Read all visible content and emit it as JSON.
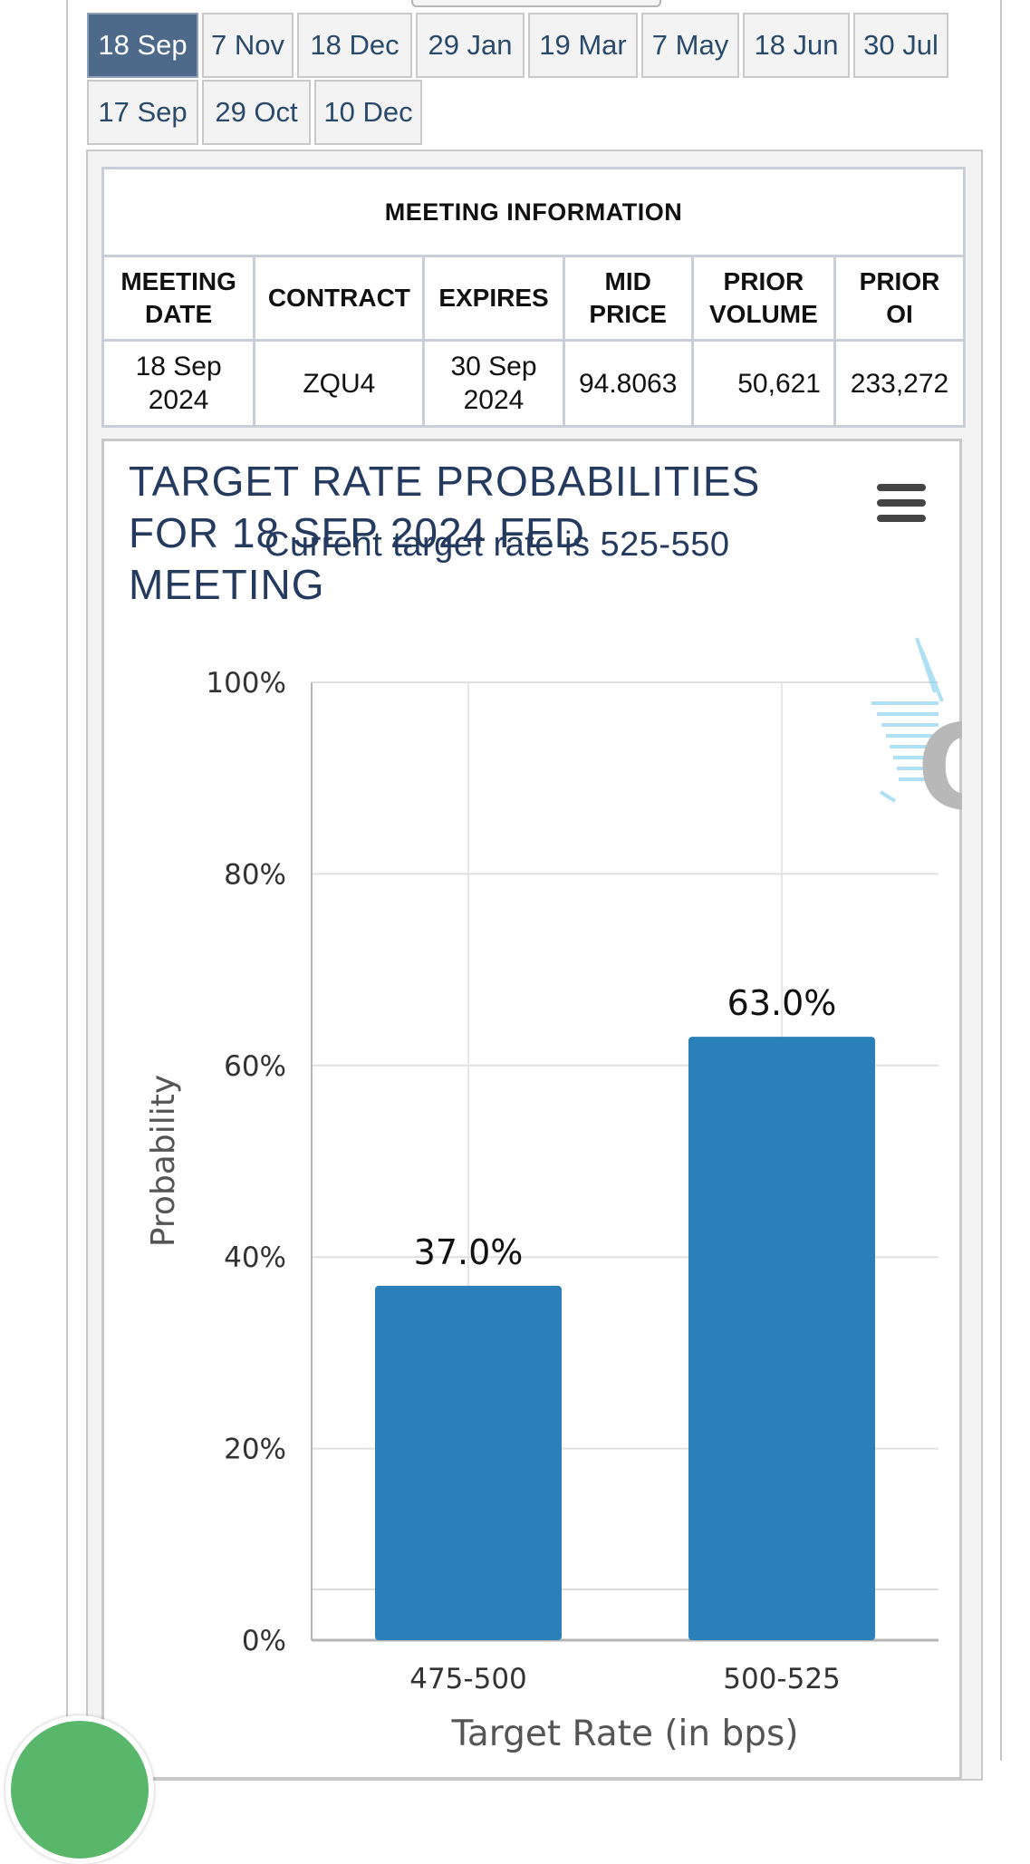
{
  "tabs": [
    {
      "label": "18 Sep",
      "active": true
    },
    {
      "label": "7 Nov",
      "active": false
    },
    {
      "label": "18 Dec",
      "active": false
    },
    {
      "label": "29 Jan",
      "active": false
    },
    {
      "label": "19 Mar",
      "active": false
    },
    {
      "label": "7 May",
      "active": false
    },
    {
      "label": "18 Jun",
      "active": false
    },
    {
      "label": "30 Jul",
      "active": false
    },
    {
      "label": "17 Sep",
      "active": false
    },
    {
      "label": "29 Oct",
      "active": false
    },
    {
      "label": "10 Dec",
      "active": false
    }
  ],
  "meeting_info": {
    "caption": "MEETING INFORMATION",
    "headers": {
      "meeting_date": [
        "MEETING",
        "DATE"
      ],
      "contract": "CONTRACT",
      "expires": "EXPIRES",
      "mid_price": [
        "MID",
        "PRICE"
      ],
      "prior_volume": [
        "PRIOR",
        "VOLUME"
      ],
      "prior_oi": [
        "PRIOR",
        "OI"
      ]
    },
    "row": {
      "meeting_date": [
        "18 Sep",
        "2024"
      ],
      "contract": "ZQU4",
      "expires": [
        "30 Sep",
        "2024"
      ],
      "mid_price": "94.8063",
      "prior_volume": "50,621",
      "prior_oi": "233,272"
    }
  },
  "chart_data": {
    "type": "bar",
    "title": [
      "TARGET RATE PROBABILITIES",
      "FOR 18 SEP 2024 FED",
      "MEETING"
    ],
    "subtitle": "Current target rate is 525-550",
    "xlabel": "Target Rate (in bps)",
    "ylabel": "Probability",
    "categories": [
      "475-500",
      "500-525"
    ],
    "values": [
      37.0,
      63.0
    ],
    "data_labels": [
      "37.0%",
      "63.0%"
    ],
    "ylim": [
      0,
      100
    ],
    "yticks": [
      0,
      20,
      40,
      60,
      80,
      100
    ],
    "ytick_labels": [
      "0%",
      "20%",
      "40%",
      "60%",
      "80%",
      "100%"
    ],
    "grid": true,
    "bar_color": "#2b80b9"
  },
  "icons": {
    "menu": "hamburger-menu-icon",
    "watermark": "q-logo-icon",
    "help": "help-chat-icon"
  }
}
